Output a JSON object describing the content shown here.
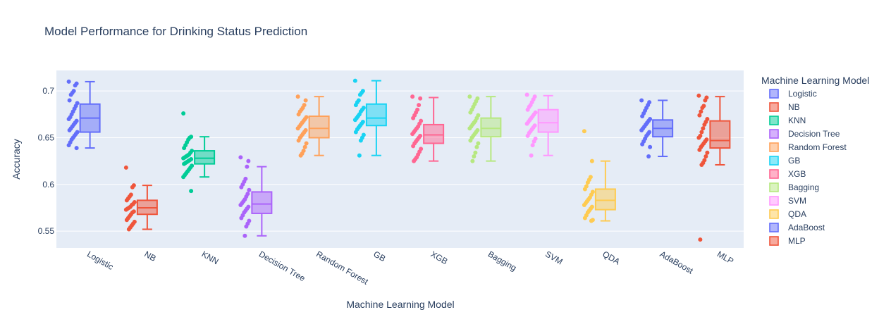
{
  "chart_data": {
    "type": "box",
    "title": "Model Performance for Drinking Status Prediction",
    "xlabel": "Machine Learning Model",
    "ylabel": "Accuracy",
    "ylim": [
      0.532,
      0.722
    ],
    "yticks": [
      0.55,
      0.6,
      0.65,
      0.7
    ],
    "yticklabels": [
      "0.55",
      "0.6",
      "0.65",
      "0.7"
    ],
    "grid": true,
    "legend_title": "Machine Learning Model",
    "legend_position": "right",
    "categories": [
      "Logistic",
      "NB",
      "KNN",
      "Decision Tree",
      "Random Forest",
      "GB",
      "XGB",
      "Bagging",
      "SVM",
      "QDA",
      "AdaBoost",
      "MLP"
    ],
    "series": [
      {
        "name": "Logistic",
        "color": "#636efa",
        "lowerfence": 0.639,
        "q1": 0.656,
        "median": 0.671,
        "q3": 0.686,
        "upperfence": 0.71,
        "points": [
          0.71,
          0.708,
          0.706,
          0.7,
          0.698,
          0.696,
          0.69,
          0.687,
          0.684,
          0.681,
          0.678,
          0.675,
          0.672,
          0.67,
          0.668,
          0.666,
          0.664,
          0.662,
          0.66,
          0.658,
          0.656,
          0.654,
          0.652,
          0.65,
          0.648,
          0.645,
          0.642,
          0.639
        ]
      },
      {
        "name": "NB",
        "color": "#ef553b",
        "lowerfence": 0.552,
        "q1": 0.568,
        "median": 0.575,
        "q3": 0.583,
        "upperfence": 0.599,
        "points": [
          0.618,
          0.599,
          0.597,
          0.589,
          0.587,
          0.585,
          0.583,
          0.581,
          0.579,
          0.578,
          0.576,
          0.575,
          0.574,
          0.573,
          0.571,
          0.57,
          0.568,
          0.566,
          0.564,
          0.562,
          0.56,
          0.558,
          0.556,
          0.554,
          0.552
        ]
      },
      {
        "name": "KNN",
        "color": "#00cc96",
        "lowerfence": 0.608,
        "q1": 0.622,
        "median": 0.628,
        "q3": 0.636,
        "upperfence": 0.651,
        "points": [
          0.676,
          0.651,
          0.65,
          0.648,
          0.645,
          0.642,
          0.639,
          0.636,
          0.634,
          0.632,
          0.631,
          0.63,
          0.629,
          0.628,
          0.627,
          0.626,
          0.625,
          0.624,
          0.623,
          0.622,
          0.62,
          0.618,
          0.616,
          0.614,
          0.612,
          0.61,
          0.608,
          0.593
        ]
      },
      {
        "name": "Decision Tree",
        "color": "#ab63fa",
        "lowerfence": 0.545,
        "q1": 0.569,
        "median": 0.579,
        "q3": 0.592,
        "upperfence": 0.619,
        "points": [
          0.629,
          0.625,
          0.619,
          0.606,
          0.603,
          0.6,
          0.597,
          0.594,
          0.59,
          0.587,
          0.584,
          0.582,
          0.58,
          0.578,
          0.576,
          0.574,
          0.572,
          0.57,
          0.567,
          0.564,
          0.561,
          0.558,
          0.555,
          0.545
        ]
      },
      {
        "name": "Random Forest",
        "color": "#ffa15a",
        "lowerfence": 0.631,
        "q1": 0.65,
        "median": 0.66,
        "q3": 0.673,
        "upperfence": 0.694,
        "points": [
          0.694,
          0.69,
          0.685,
          0.682,
          0.68,
          0.678,
          0.675,
          0.672,
          0.67,
          0.668,
          0.666,
          0.664,
          0.662,
          0.66,
          0.658,
          0.656,
          0.654,
          0.652,
          0.65,
          0.647,
          0.644,
          0.64,
          0.636,
          0.633,
          0.631
        ]
      },
      {
        "name": "GB",
        "color": "#19d3f3",
        "lowerfence": 0.631,
        "q1": 0.663,
        "median": 0.671,
        "q3": 0.686,
        "upperfence": 0.711,
        "points": [
          0.711,
          0.7,
          0.698,
          0.696,
          0.69,
          0.688,
          0.685,
          0.682,
          0.68,
          0.678,
          0.675,
          0.673,
          0.671,
          0.669,
          0.667,
          0.665,
          0.663,
          0.661,
          0.659,
          0.656,
          0.653,
          0.65,
          0.647,
          0.631
        ]
      },
      {
        "name": "XGB",
        "color": "#ff6692",
        "lowerfence": 0.625,
        "q1": 0.644,
        "median": 0.653,
        "q3": 0.664,
        "upperfence": 0.693,
        "points": [
          0.694,
          0.692,
          0.685,
          0.68,
          0.677,
          0.674,
          0.671,
          0.668,
          0.665,
          0.662,
          0.66,
          0.658,
          0.656,
          0.654,
          0.652,
          0.65,
          0.648,
          0.646,
          0.644,
          0.641,
          0.638,
          0.635,
          0.632,
          0.629,
          0.627,
          0.625
        ]
      },
      {
        "name": "Bagging",
        "color": "#b6e880",
        "lowerfence": 0.625,
        "q1": 0.651,
        "median": 0.66,
        "q3": 0.671,
        "upperfence": 0.694,
        "points": [
          0.694,
          0.692,
          0.689,
          0.686,
          0.683,
          0.68,
          0.677,
          0.674,
          0.671,
          0.668,
          0.666,
          0.664,
          0.662,
          0.66,
          0.658,
          0.656,
          0.654,
          0.652,
          0.65,
          0.647,
          0.644,
          0.64,
          0.634,
          0.63,
          0.625
        ]
      },
      {
        "name": "SVM",
        "color": "#ff97ff",
        "lowerfence": 0.631,
        "q1": 0.656,
        "median": 0.666,
        "q3": 0.68,
        "upperfence": 0.695,
        "points": [
          0.696,
          0.694,
          0.691,
          0.688,
          0.685,
          0.683,
          0.68,
          0.677,
          0.675,
          0.673,
          0.671,
          0.669,
          0.667,
          0.665,
          0.663,
          0.661,
          0.659,
          0.657,
          0.655,
          0.652,
          0.649,
          0.646,
          0.642,
          0.631
        ]
      },
      {
        "name": "QDA",
        "color": "#fecb52",
        "lowerfence": 0.561,
        "q1": 0.573,
        "median": 0.583,
        "q3": 0.595,
        "upperfence": 0.625,
        "points": [
          0.657,
          0.625,
          0.608,
          0.605,
          0.602,
          0.598,
          0.595,
          0.592,
          0.589,
          0.586,
          0.584,
          0.582,
          0.58,
          0.578,
          0.576,
          0.574,
          0.572,
          0.57,
          0.567,
          0.564,
          0.562,
          0.561
        ]
      },
      {
        "name": "AdaBoost",
        "color": "#636efa",
        "lowerfence": 0.63,
        "q1": 0.651,
        "median": 0.66,
        "q3": 0.669,
        "upperfence": 0.69,
        "points": [
          0.69,
          0.688,
          0.685,
          0.682,
          0.679,
          0.676,
          0.673,
          0.67,
          0.668,
          0.666,
          0.664,
          0.662,
          0.66,
          0.658,
          0.656,
          0.654,
          0.652,
          0.649,
          0.646,
          0.643,
          0.64,
          0.63
        ]
      },
      {
        "name": "MLP",
        "color": "#ef553b",
        "lowerfence": 0.621,
        "q1": 0.639,
        "median": 0.647,
        "q3": 0.668,
        "upperfence": 0.694,
        "points": [
          0.695,
          0.693,
          0.69,
          0.684,
          0.682,
          0.678,
          0.674,
          0.67,
          0.667,
          0.664,
          0.66,
          0.656,
          0.652,
          0.65,
          0.648,
          0.646,
          0.644,
          0.642,
          0.64,
          0.637,
          0.634,
          0.63,
          0.626,
          0.623,
          0.621,
          0.541
        ]
      }
    ]
  }
}
